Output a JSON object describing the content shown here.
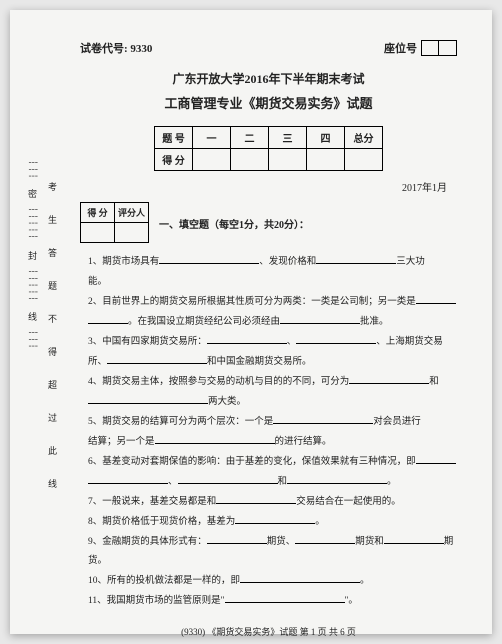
{
  "header": {
    "paper_code_label": "试卷代号: 9330",
    "seat_label": "座位号"
  },
  "titles": {
    "line1": "广东开放大学2016年下半年期末考试",
    "line2": "工商管理专业《期货交易实务》试题"
  },
  "score_table": {
    "row1": [
      "题 号",
      "一",
      "二",
      "三",
      "四",
      "总分"
    ],
    "row2_label": "得 分"
  },
  "date": "2017年1月",
  "grade_table": {
    "c1": "得 分",
    "c2": "评分人"
  },
  "section1_title": "一、填空题（每空1分，共20分）：",
  "questions": {
    "q1a": "1、期货市场具有",
    "q1b": "、发现价格和",
    "q1c": "三大功",
    "q1d": "能。",
    "q2a": "2、目前世界上的期货交易所根据其性质可分为两类：一类是公司制；另一类是",
    "q2b": "。在我国设立期货经纪公司必须经由",
    "q2c": "批准。",
    "q3a": "3、中国有四家期货交易所：",
    "q3b": "、",
    "q3c": "、上海期货交易",
    "q3d": "所、",
    "q3e": "和中国金融期货交易所。",
    "q4a": "4、期货交易主体，按照参与交易的动机与目的的不同，可分为",
    "q4b": "和",
    "q4c": "两大类。",
    "q5a": "5、期货交易的结算可分为两个层次：一个是",
    "q5b": "对会员进行",
    "q5c": "结算；另一个是",
    "q5d": "的进行结算。",
    "q6a": "6、基差变动对套期保值的影响：由于基差的变化，保值效果就有三种情况，即",
    "q6b": "、",
    "q6c": "和",
    "q6d": "。",
    "q7a": "7、一般说来，基差交易都是和",
    "q7b": "交易结合在一起使用的。",
    "q8a": "8、期货价格低于现货价格，基差为",
    "q8b": "。",
    "q9a": "9、金融期货的具体形式有：",
    "q9b": "期货、",
    "q9c": "期货和",
    "q9d": "期货。",
    "q10a": "10、所有的投机做法都是一样的，即",
    "q10b": "。",
    "q11a": "11、我国期货市场的监管原则是\"",
    "q11b": "\"。"
  },
  "footer": "(9330) 《期货交易实务》试题 第 1 页 共 6 页",
  "margin": {
    "a1": "密",
    "a2": "封",
    "a3": "线",
    "b1": "考",
    "b2": "生",
    "b3": "答",
    "b4": "题",
    "b5": "不",
    "b6": "得",
    "b7": "超",
    "b8": "过",
    "b9": "此",
    "b10": "线"
  }
}
